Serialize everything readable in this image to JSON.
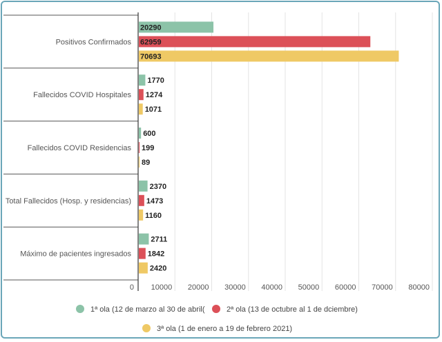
{
  "chart_data": {
    "type": "bar",
    "orientation": "horizontal",
    "title": "",
    "xlabel": "",
    "ylabel": "",
    "xlim": [
      0,
      80000
    ],
    "xticks": [
      0,
      10000,
      20000,
      30000,
      40000,
      50000,
      60000,
      70000,
      80000
    ],
    "xtick_labels": [
      "0",
      "10000",
      "20000",
      "30000",
      "40000",
      "50000",
      "60000",
      "70000",
      "80000"
    ],
    "grid": true,
    "legend_position": "bottom",
    "categories": [
      "Positivos Confirmados",
      "Fallecidos COVID Hospitales",
      "Fallecidos COVID Residencias",
      "Total Fallecidos (Hosp. y residencias)",
      "Máximo de pacientes ingresados"
    ],
    "series": [
      {
        "name": "1ª ola (12 de marzo al 30 de abril(",
        "color": "#8cc3a8",
        "values": [
          20290,
          1770,
          600,
          2370,
          2711
        ],
        "labels": [
          "20290",
          "1770",
          "600",
          "2370",
          "2711"
        ]
      },
      {
        "name": "2ª ola (13 de octubre al 1 de dciembre)",
        "color": "#dc5058",
        "values": [
          62959,
          1274,
          199,
          1473,
          1842
        ],
        "labels": [
          "62959",
          "1274",
          "199",
          "1473",
          "1842"
        ]
      },
      {
        "name": "3ª ola (1 de enero a 19 de febrero 2021)",
        "color": "#efc965",
        "values": [
          70693,
          1071,
          89,
          1160,
          2420
        ],
        "labels": [
          "70693",
          "1071",
          "89",
          "1160",
          "2420"
        ]
      }
    ]
  }
}
